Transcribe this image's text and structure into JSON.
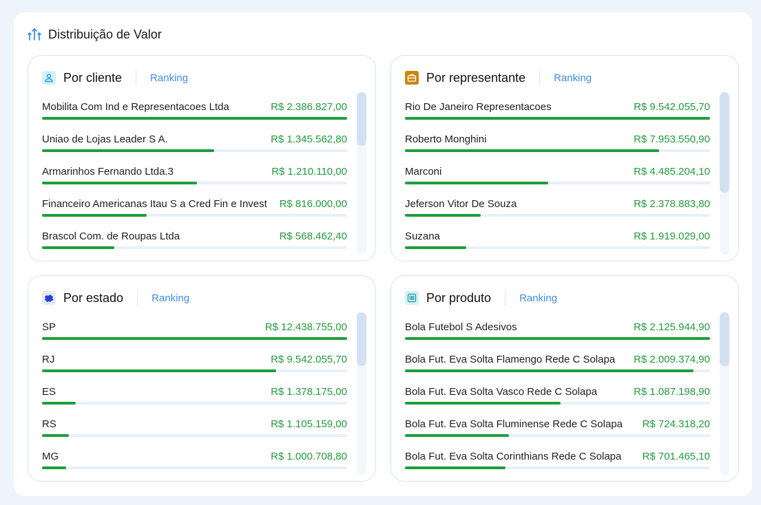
{
  "header": {
    "title": "Distribuição de Valor"
  },
  "colors": {
    "accent": "#3d8ee8",
    "value": "#1f9d3b",
    "track": "#e8f0fa"
  },
  "cards": {
    "cliente": {
      "title": "Por cliente",
      "ranking": "Ranking",
      "icon": "person-icon",
      "items": [
        {
          "label": "Mobilita Com Ind e Representacoes Ltda",
          "value": "R$ 2.386.827,00",
          "fraction": 1.0
        },
        {
          "label": "Uniao de Lojas Leader S A.",
          "value": "R$ 1.345.562,80",
          "fraction": 0.564
        },
        {
          "label": "Armarinhos Fernando Ltda.3",
          "value": "R$ 1.210.110,00",
          "fraction": 0.507
        },
        {
          "label": "Financeiro Americanas Itau S a Cred Fin e Invest",
          "value": "R$ 816.000,00",
          "fraction": 0.342
        },
        {
          "label": "Brascol Com. de Roupas Ltda",
          "value": "R$ 568.462,40",
          "fraction": 0.238
        }
      ]
    },
    "representante": {
      "title": "Por representante",
      "ranking": "Ranking",
      "icon": "briefcase-icon",
      "items": [
        {
          "label": "Rio De Janeiro Representacoes",
          "value": "R$ 9.542.055,70",
          "fraction": 1.0
        },
        {
          "label": "Roberto Monghini",
          "value": "R$ 7.953.550,90",
          "fraction": 0.834
        },
        {
          "label": "Marconi",
          "value": "R$ 4.485.204,10",
          "fraction": 0.47
        },
        {
          "label": "Jeferson Vitor De Souza",
          "value": "R$ 2.378.883,80",
          "fraction": 0.249
        },
        {
          "label": "Suzana",
          "value": "R$ 1.919.029,00",
          "fraction": 0.201
        }
      ]
    },
    "estado": {
      "title": "Por estado",
      "ranking": "Ranking",
      "icon": "map-icon",
      "items": [
        {
          "label": "SP",
          "value": "R$ 12.438.755,00",
          "fraction": 1.0
        },
        {
          "label": "RJ",
          "value": "R$ 9.542.055,70",
          "fraction": 0.767
        },
        {
          "label": "ES",
          "value": "R$ 1.378.175,00",
          "fraction": 0.111
        },
        {
          "label": "RS",
          "value": "R$ 1.105.159,00",
          "fraction": 0.089
        },
        {
          "label": "MG",
          "value": "R$ 1.000.708,80",
          "fraction": 0.08
        }
      ]
    },
    "produto": {
      "title": "Por produto",
      "ranking": "Ranking",
      "icon": "barcode-icon",
      "items": [
        {
          "label": "Bola Futebol S  Adesivos",
          "value": "R$ 2.125.944,90",
          "fraction": 1.0
        },
        {
          "label": "Bola Fut. Eva Solta Flamengo Rede C  Solapa",
          "value": "R$ 2.009.374,90",
          "fraction": 0.945
        },
        {
          "label": "Bola Fut. Eva Solta Vasco Rede C  Solapa",
          "value": "R$ 1.087.198,90",
          "fraction": 0.511
        },
        {
          "label": "Bola Fut. Eva Solta Fluminense Rede C  Solapa",
          "value": "R$ 724.318,20",
          "fraction": 0.341
        },
        {
          "label": "Bola Fut. Eva Solta Corinthians Rede C  Solapa",
          "value": "R$ 701.465,10",
          "fraction": 0.33
        }
      ]
    }
  }
}
